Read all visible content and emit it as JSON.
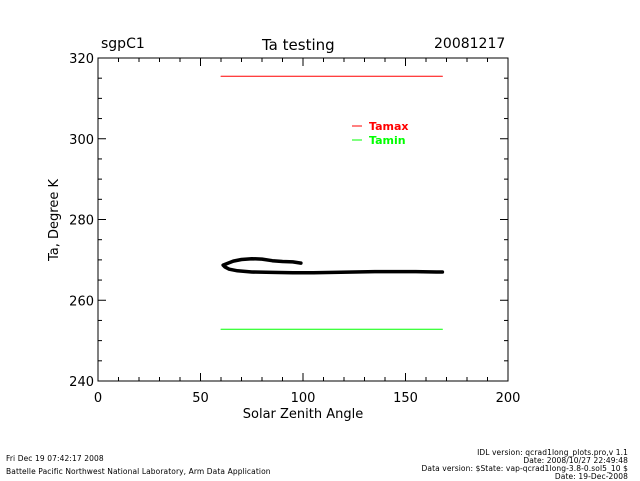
{
  "header": {
    "site": "sgpC1",
    "title": "Ta testing",
    "date": "20081217"
  },
  "footer": {
    "run_time": "Fri Dec 19 07:42:17 2008",
    "institution": "Battelle Pacific Northwest National Laboratory, Arm Data Application",
    "idl_version": "IDL version: qcrad1long_plots.pro,v 1.1",
    "code_date": "Date: 2008/10/27 22:49:48",
    "data_version": "Data version: $State: vap-qcrad1long-3.8-0.sol5_10 $",
    "data_date": "Date: 19-Dec-2008"
  },
  "colors": {
    "tamax": "#ff0000",
    "tamin": "#00ff00",
    "ta": "#000000"
  },
  "chart_data": {
    "type": "line",
    "title": "Ta testing",
    "xlabel": "Solar Zenith Angle",
    "ylabel": "Ta, Degree K",
    "xlim": [
      0,
      200
    ],
    "ylim": [
      240,
      320
    ],
    "xticks": [
      0,
      50,
      100,
      150,
      200
    ],
    "yticks": [
      240,
      260,
      280,
      300,
      320
    ],
    "grid": false,
    "legend_position": "upper-right",
    "series": [
      {
        "name": "Tamax",
        "color": "#ff0000",
        "x": [
          60,
          168
        ],
        "y": [
          315.5,
          315.5
        ]
      },
      {
        "name": "Tamin",
        "color": "#00ff00",
        "x": [
          60,
          168
        ],
        "y": [
          252.8,
          252.8
        ]
      },
      {
        "color": "#000000",
        "x": [
          99,
          95,
          90,
          85,
          80,
          75,
          70,
          66,
          63,
          61,
          62,
          64,
          68,
          75,
          85,
          95,
          105,
          115,
          125,
          135,
          145,
          155,
          165,
          168
        ],
        "y": [
          269.2,
          269.5,
          269.6,
          269.8,
          270.2,
          270.3,
          270.1,
          269.7,
          269.1,
          268.7,
          268.2,
          267.7,
          267.3,
          267.0,
          266.9,
          266.8,
          266.8,
          266.9,
          267.0,
          267.1,
          267.1,
          267.1,
          267.0,
          267.0
        ]
      }
    ]
  }
}
